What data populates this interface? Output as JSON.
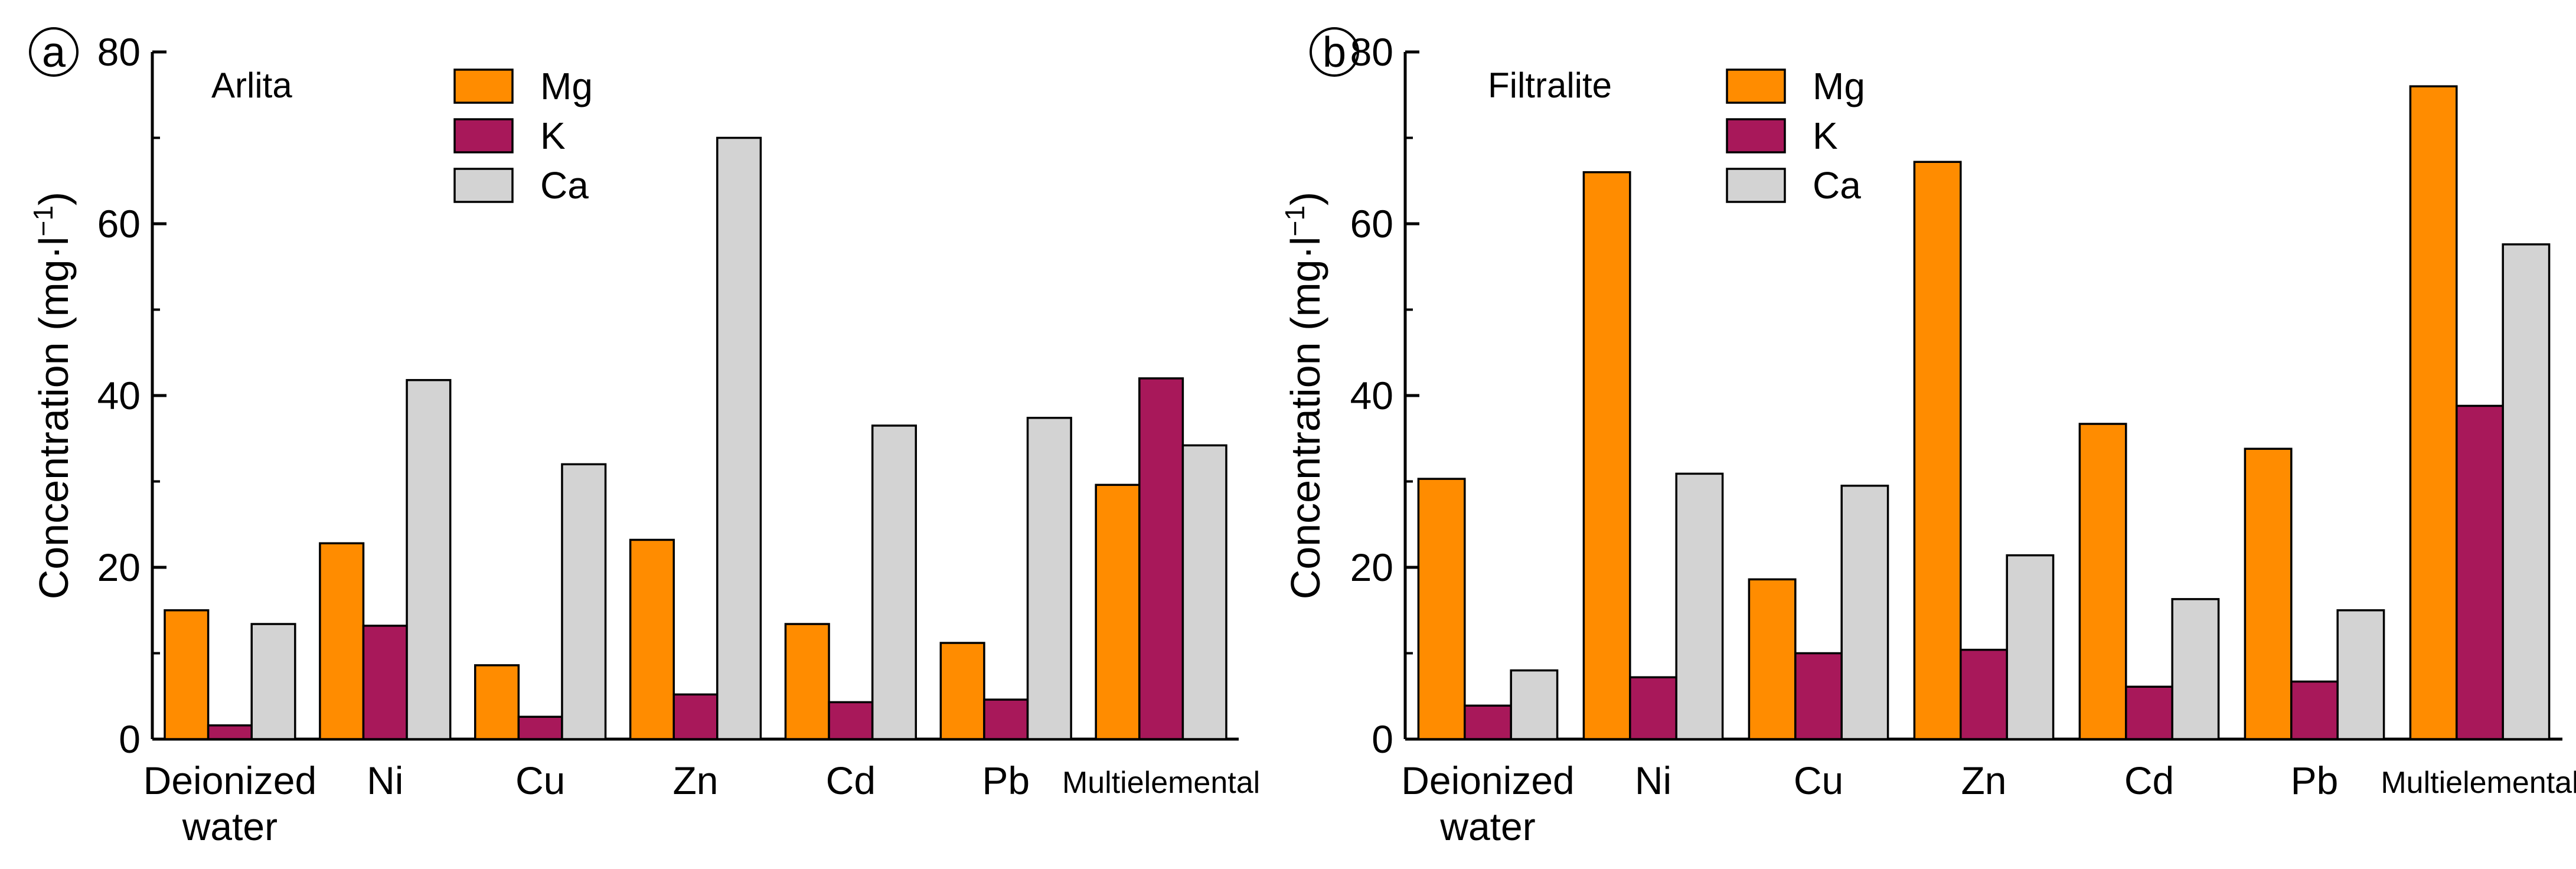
{
  "colors": {
    "Mg": "#ff8c00",
    "K": "#a8185a",
    "Ca": "#d3d3d3"
  },
  "chart_data": [
    {
      "type": "bar",
      "panel": "a",
      "title": "Arlita",
      "xlabel": "",
      "ylabel": "Concentration (mg·l⁻¹)",
      "ylim": [
        0,
        80
      ],
      "yticks": [
        "0",
        "20",
        "40",
        "60",
        "80"
      ],
      "grid": false,
      "legend_position": "top-center",
      "categories": [
        "Deionized water",
        "Ni",
        "Cu",
        "Zn",
        "Cd",
        "Pb",
        "Multielemental"
      ],
      "series": [
        {
          "name": "Mg",
          "values": [
            15,
            22.8,
            8.6,
            23.2,
            13.4,
            11.2,
            29.6
          ]
        },
        {
          "name": "K",
          "values": [
            1.6,
            13.2,
            2.6,
            5.2,
            4.3,
            4.6,
            42
          ]
        },
        {
          "name": "Ca",
          "values": [
            13.4,
            41.8,
            32,
            70,
            36.5,
            37.4,
            34.2
          ]
        }
      ]
    },
    {
      "type": "bar",
      "panel": "b",
      "title": "Filtralite",
      "xlabel": "",
      "ylabel": "Concentration (mg·l⁻¹)",
      "ylim": [
        0,
        80
      ],
      "yticks": [
        "0",
        "20",
        "40",
        "60",
        "80"
      ],
      "grid": false,
      "legend_position": "top-center",
      "categories": [
        "Deionized water",
        "Ni",
        "Cu",
        "Zn",
        "Cd",
        "Pb",
        "Multielemental"
      ],
      "series": [
        {
          "name": "Mg",
          "values": [
            30.3,
            66,
            18.6,
            67.2,
            36.7,
            33.8,
            76
          ]
        },
        {
          "name": "K",
          "values": [
            3.9,
            7.2,
            10,
            10.4,
            6.1,
            6.7,
            38.8
          ]
        },
        {
          "name": "Ca",
          "values": [
            8,
            30.9,
            29.5,
            21.4,
            16.3,
            15,
            57.6
          ]
        }
      ]
    }
  ]
}
